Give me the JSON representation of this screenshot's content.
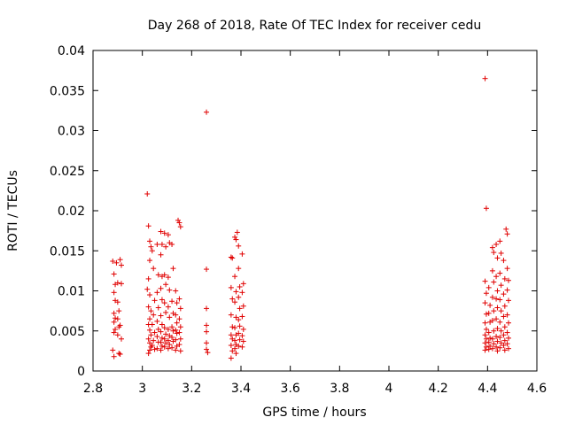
{
  "chart_data": {
    "type": "scatter",
    "title": "Day 268 of 2018, Rate Of TEC Index for receiver cedu",
    "xlabel": "GPS time / hours",
    "ylabel": "ROTI / TECUs",
    "xlim": [
      2.8,
      4.6
    ],
    "ylim": [
      0,
      0.04
    ],
    "x_ticks": [
      "2.8",
      "3",
      "3.2",
      "3.4",
      "3.6",
      "3.8",
      "4",
      "4.2",
      "4.4",
      "4.6"
    ],
    "x_tick_values": [
      2.8,
      3.0,
      3.2,
      3.4,
      3.6,
      3.8,
      4.0,
      4.2,
      4.4,
      4.6
    ],
    "y_ticks": [
      "0",
      "0.005",
      "0.01",
      "0.015",
      "0.02",
      "0.025",
      "0.03",
      "0.035",
      "0.04"
    ],
    "y_tick_values": [
      0,
      0.005,
      0.01,
      0.015,
      0.02,
      0.025,
      0.03,
      0.035,
      0.04
    ],
    "marker": "+",
    "color": "#e00000",
    "series": [
      {
        "name": "ROTI",
        "points": [
          [
            2.88,
            0.0137
          ],
          [
            2.885,
            0.0121
          ],
          [
            2.89,
            0.0108
          ],
          [
            2.885,
            0.0098
          ],
          [
            2.89,
            0.0088
          ],
          [
            2.885,
            0.0072
          ],
          [
            2.89,
            0.0066
          ],
          [
            2.885,
            0.0061
          ],
          [
            2.89,
            0.0052
          ],
          [
            2.885,
            0.0048
          ],
          [
            2.88,
            0.0026
          ],
          [
            2.885,
            0.0018
          ],
          [
            2.895,
            0.0135
          ],
          [
            2.9,
            0.011
          ],
          [
            2.9,
            0.0086
          ],
          [
            2.905,
            0.0075
          ],
          [
            2.9,
            0.0065
          ],
          [
            2.905,
            0.0055
          ],
          [
            2.9,
            0.0045
          ],
          [
            2.905,
            0.0022
          ],
          [
            2.91,
            0.0021
          ],
          [
            2.91,
            0.0139
          ],
          [
            2.915,
            0.0132
          ],
          [
            2.915,
            0.0109
          ],
          [
            2.91,
            0.0057
          ],
          [
            2.915,
            0.004
          ],
          [
            3.02,
            0.0221
          ],
          [
            3.025,
            0.0181
          ],
          [
            3.03,
            0.0162
          ],
          [
            3.035,
            0.0155
          ],
          [
            3.03,
            0.0138
          ],
          [
            3.025,
            0.0115
          ],
          [
            3.02,
            0.0102
          ],
          [
            3.03,
            0.0095
          ],
          [
            3.025,
            0.008
          ],
          [
            3.035,
            0.0075
          ],
          [
            3.03,
            0.0065
          ],
          [
            3.025,
            0.0058
          ],
          [
            3.03,
            0.0051
          ],
          [
            3.035,
            0.0045
          ],
          [
            3.025,
            0.004
          ],
          [
            3.03,
            0.0035
          ],
          [
            3.035,
            0.003
          ],
          [
            3.03,
            0.0026
          ],
          [
            3.025,
            0.0022
          ],
          [
            3.04,
            0.015
          ],
          [
            3.045,
            0.0128
          ],
          [
            3.05,
            0.0088
          ],
          [
            3.045,
            0.007
          ],
          [
            3.04,
            0.0058
          ],
          [
            3.05,
            0.0048
          ],
          [
            3.045,
            0.0038
          ],
          [
            3.04,
            0.0032
          ],
          [
            3.05,
            0.0027
          ],
          [
            3.06,
            0.0158
          ],
          [
            3.065,
            0.012
          ],
          [
            3.06,
            0.0098
          ],
          [
            3.065,
            0.0079
          ],
          [
            3.06,
            0.0062
          ],
          [
            3.065,
            0.0052
          ],
          [
            3.06,
            0.0043
          ],
          [
            3.065,
            0.0036
          ],
          [
            3.06,
            0.0028
          ],
          [
            3.075,
            0.0174
          ],
          [
            3.08,
            0.0158
          ],
          [
            3.075,
            0.0145
          ],
          [
            3.08,
            0.0118
          ],
          [
            3.075,
            0.0103
          ],
          [
            3.08,
            0.0089
          ],
          [
            3.075,
            0.0069
          ],
          [
            3.08,
            0.0058
          ],
          [
            3.075,
            0.0049
          ],
          [
            3.08,
            0.0041
          ],
          [
            3.075,
            0.0036
          ],
          [
            3.08,
            0.0031
          ],
          [
            3.075,
            0.0026
          ],
          [
            3.09,
            0.0172
          ],
          [
            3.095,
            0.0155
          ],
          [
            3.09,
            0.012
          ],
          [
            3.095,
            0.0108
          ],
          [
            3.09,
            0.0085
          ],
          [
            3.095,
            0.0073
          ],
          [
            3.09,
            0.0054
          ],
          [
            3.095,
            0.0046
          ],
          [
            3.09,
            0.004
          ],
          [
            3.095,
            0.0035
          ],
          [
            3.09,
            0.003
          ],
          [
            3.105,
            0.017
          ],
          [
            3.11,
            0.016
          ],
          [
            3.105,
            0.0117
          ],
          [
            3.11,
            0.0101
          ],
          [
            3.105,
            0.008
          ],
          [
            3.11,
            0.0067
          ],
          [
            3.105,
            0.0052
          ],
          [
            3.11,
            0.0044
          ],
          [
            3.105,
            0.0038
          ],
          [
            3.11,
            0.0033
          ],
          [
            3.105,
            0.0028
          ],
          [
            3.12,
            0.0158
          ],
          [
            3.125,
            0.0128
          ],
          [
            3.12,
            0.0087
          ],
          [
            3.125,
            0.0072
          ],
          [
            3.12,
            0.0055
          ],
          [
            3.125,
            0.005
          ],
          [
            3.12,
            0.0042
          ],
          [
            3.125,
            0.0037
          ],
          [
            3.12,
            0.0029
          ],
          [
            3.135,
            0.01
          ],
          [
            3.14,
            0.0085
          ],
          [
            3.135,
            0.007
          ],
          [
            3.14,
            0.006
          ],
          [
            3.135,
            0.0051
          ],
          [
            3.14,
            0.0047
          ],
          [
            3.135,
            0.0039
          ],
          [
            3.14,
            0.0031
          ],
          [
            3.135,
            0.0026
          ],
          [
            3.145,
            0.0188
          ],
          [
            3.15,
            0.0185
          ],
          [
            3.155,
            0.018
          ],
          [
            3.15,
            0.009
          ],
          [
            3.155,
            0.0078
          ],
          [
            3.15,
            0.0065
          ],
          [
            3.155,
            0.0055
          ],
          [
            3.15,
            0.0048
          ],
          [
            3.155,
            0.004
          ],
          [
            3.15,
            0.0033
          ],
          [
            3.155,
            0.0025
          ],
          [
            3.26,
            0.0323
          ],
          [
            3.26,
            0.0127
          ],
          [
            3.26,
            0.0078
          ],
          [
            3.26,
            0.0057
          ],
          [
            3.26,
            0.0049
          ],
          [
            3.26,
            0.0035
          ],
          [
            3.26,
            0.0027
          ],
          [
            3.265,
            0.0023
          ],
          [
            3.36,
            0.0142
          ],
          [
            3.365,
            0.0141
          ],
          [
            3.36,
            0.0104
          ],
          [
            3.365,
            0.009
          ],
          [
            3.36,
            0.007
          ],
          [
            3.365,
            0.0055
          ],
          [
            3.36,
            0.0045
          ],
          [
            3.365,
            0.004
          ],
          [
            3.36,
            0.0032
          ],
          [
            3.365,
            0.0025
          ],
          [
            3.36,
            0.0016
          ],
          [
            3.375,
            0.0167
          ],
          [
            3.38,
            0.0164
          ],
          [
            3.375,
            0.0118
          ],
          [
            3.38,
            0.0099
          ],
          [
            3.375,
            0.0086
          ],
          [
            3.38,
            0.0067
          ],
          [
            3.375,
            0.0054
          ],
          [
            3.38,
            0.0045
          ],
          [
            3.375,
            0.0038
          ],
          [
            3.38,
            0.0033
          ],
          [
            3.375,
            0.0028
          ],
          [
            3.38,
            0.0022
          ],
          [
            3.385,
            0.0173
          ],
          [
            3.39,
            0.0156
          ],
          [
            3.39,
            0.0128
          ],
          [
            3.395,
            0.0105
          ],
          [
            3.39,
            0.0092
          ],
          [
            3.395,
            0.0078
          ],
          [
            3.39,
            0.0064
          ],
          [
            3.395,
            0.0056
          ],
          [
            3.39,
            0.0047
          ],
          [
            3.395,
            0.0039
          ],
          [
            3.39,
            0.0031
          ],
          [
            3.405,
            0.0146
          ],
          [
            3.41,
            0.0109
          ],
          [
            3.405,
            0.0098
          ],
          [
            3.41,
            0.0081
          ],
          [
            3.405,
            0.0068
          ],
          [
            3.41,
            0.0052
          ],
          [
            3.405,
            0.0044
          ],
          [
            3.41,
            0.0037
          ],
          [
            3.405,
            0.003
          ],
          [
            4.39,
            0.0365
          ],
          [
            4.395,
            0.0203
          ],
          [
            4.39,
            0.0112
          ],
          [
            4.395,
            0.0097
          ],
          [
            4.39,
            0.0085
          ],
          [
            4.395,
            0.0071
          ],
          [
            4.39,
            0.006
          ],
          [
            4.395,
            0.0052
          ],
          [
            4.39,
            0.0045
          ],
          [
            4.395,
            0.004
          ],
          [
            4.39,
            0.0035
          ],
          [
            4.395,
            0.003
          ],
          [
            4.39,
            0.0026
          ],
          [
            4.405,
            0.0104
          ],
          [
            4.41,
            0.0082
          ],
          [
            4.405,
            0.0072
          ],
          [
            4.41,
            0.0061
          ],
          [
            4.405,
            0.0048
          ],
          [
            4.41,
            0.0041
          ],
          [
            4.405,
            0.0036
          ],
          [
            4.41,
            0.0031
          ],
          [
            4.405,
            0.0027
          ],
          [
            4.42,
            0.0154
          ],
          [
            4.425,
            0.0148
          ],
          [
            4.42,
            0.0125
          ],
          [
            4.425,
            0.0111
          ],
          [
            4.42,
            0.0092
          ],
          [
            4.425,
            0.0075
          ],
          [
            4.42,
            0.0063
          ],
          [
            4.425,
            0.005
          ],
          [
            4.42,
            0.004
          ],
          [
            4.425,
            0.0034
          ],
          [
            4.42,
            0.0028
          ],
          [
            4.435,
            0.0158
          ],
          [
            4.44,
            0.0141
          ],
          [
            4.435,
            0.0118
          ],
          [
            4.44,
            0.01
          ],
          [
            4.435,
            0.009
          ],
          [
            4.44,
            0.0079
          ],
          [
            4.435,
            0.0065
          ],
          [
            4.44,
            0.0053
          ],
          [
            4.435,
            0.0043
          ],
          [
            4.44,
            0.0037
          ],
          [
            4.435,
            0.003
          ],
          [
            4.44,
            0.0025
          ],
          [
            4.45,
            0.0162
          ],
          [
            4.455,
            0.0147
          ],
          [
            4.45,
            0.0122
          ],
          [
            4.455,
            0.0107
          ],
          [
            4.45,
            0.0089
          ],
          [
            4.455,
            0.0075
          ],
          [
            4.45,
            0.0061
          ],
          [
            4.455,
            0.005
          ],
          [
            4.45,
            0.0042
          ],
          [
            4.455,
            0.0035
          ],
          [
            4.45,
            0.0029
          ],
          [
            4.465,
            0.0138
          ],
          [
            4.47,
            0.0115
          ],
          [
            4.465,
            0.0096
          ],
          [
            4.47,
            0.0081
          ],
          [
            4.465,
            0.0068
          ],
          [
            4.47,
            0.0055
          ],
          [
            4.465,
            0.0045
          ],
          [
            4.47,
            0.0038
          ],
          [
            4.465,
            0.0032
          ],
          [
            4.47,
            0.0026
          ],
          [
            4.475,
            0.0177
          ],
          [
            4.48,
            0.0171
          ],
          [
            4.48,
            0.0128
          ],
          [
            4.485,
            0.0113
          ],
          [
            4.48,
            0.0101
          ],
          [
            4.485,
            0.0088
          ],
          [
            4.48,
            0.007
          ],
          [
            4.485,
            0.006
          ],
          [
            4.48,
            0.0048
          ],
          [
            4.485,
            0.0041
          ],
          [
            4.48,
            0.0034
          ],
          [
            4.485,
            0.0028
          ]
        ]
      }
    ]
  }
}
